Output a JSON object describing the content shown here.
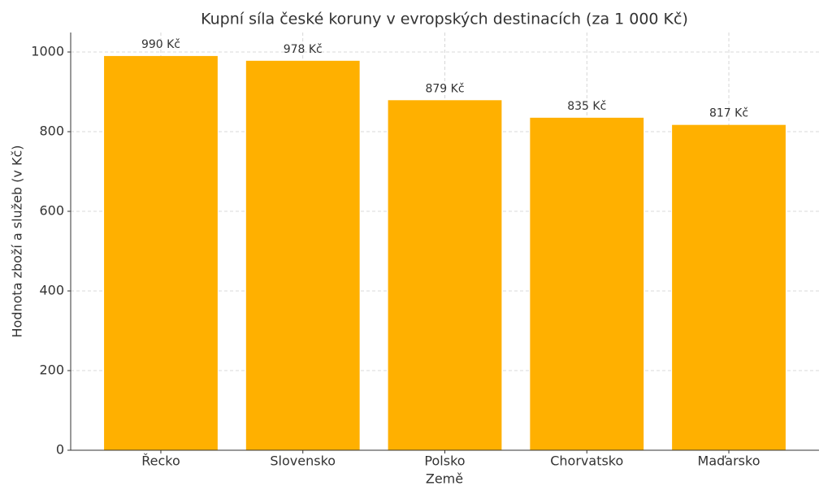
{
  "chart_data": {
    "type": "bar",
    "title": "Kupní síla české koruny v evropských destinacích (za 1 000 Kč)",
    "xlabel": "Země",
    "ylabel": "Hodnota zboží a služeb (v Kč)",
    "categories": [
      "Řecko",
      "Slovensko",
      "Polsko",
      "Chorvatsko",
      "Maďarsko"
    ],
    "values": [
      990,
      978,
      879,
      835,
      817
    ],
    "value_labels": [
      "990 Kč",
      "978 Kč",
      "879 Kč",
      "835 Kč",
      "817 Kč"
    ],
    "color": "#ffb000",
    "ylim": [
      0,
      1049
    ],
    "yticks": [
      0,
      200,
      400,
      600,
      800,
      1000
    ],
    "grid": true
  }
}
